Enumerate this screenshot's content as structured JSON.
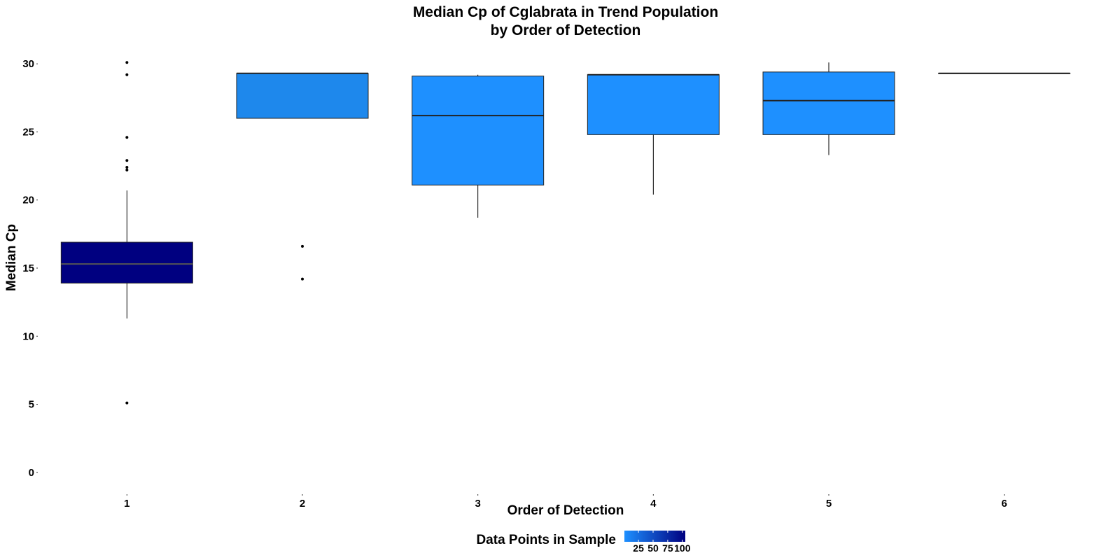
{
  "chart_data": {
    "type": "boxplot",
    "title": [
      "Median Cp of Cglabrata in Trend Population",
      "by Order of Detection"
    ],
    "xlabel": "Order of Detection",
    "ylabel": "Median Cp",
    "categories": [
      "1",
      "2",
      "3",
      "4",
      "5",
      "6"
    ],
    "y_ticks": [
      0,
      5,
      10,
      15,
      20,
      25,
      30
    ],
    "ylim": [
      -1.5,
      31.5
    ],
    "grid": false,
    "boxes": [
      {
        "x": "1",
        "whisker_low": 11.3,
        "q1": 13.9,
        "median": 15.3,
        "q3": 16.9,
        "whisker_high": 20.7,
        "outliers": [
          5.1,
          22.2,
          22.4,
          22.9,
          24.6,
          29.2,
          30.1
        ],
        "count": 105,
        "fill": "#000080"
      },
      {
        "x": "2",
        "whisker_low": 26.0,
        "q1": 26.0,
        "median": 29.3,
        "q3": 29.3,
        "whisker_high": 29.3,
        "outliers": [
          14.2,
          16.6
        ],
        "count": 7,
        "fill": "#1E88EC"
      },
      {
        "x": "3",
        "whisker_low": 18.7,
        "q1": 21.1,
        "median": 26.2,
        "q3": 29.1,
        "whisker_high": 29.2,
        "outliers": [],
        "count": 5,
        "fill": "#1E90FF"
      },
      {
        "x": "4",
        "whisker_low": 20.4,
        "q1": 24.8,
        "median": 29.2,
        "q3": 29.2,
        "whisker_high": 29.2,
        "outliers": [],
        "count": 4,
        "fill": "#1E90FF"
      },
      {
        "x": "5",
        "whisker_low": 23.3,
        "q1": 24.8,
        "median": 27.3,
        "q3": 29.4,
        "whisker_high": 30.1,
        "outliers": [],
        "count": 4,
        "fill": "#1E90FF"
      },
      {
        "x": "6",
        "whisker_low": 29.3,
        "q1": 29.3,
        "median": 29.3,
        "q3": 29.3,
        "whisker_high": 29.3,
        "outliers": [],
        "count": 1,
        "fill": "#1E90FF"
      }
    ],
    "legend": {
      "title": "Data Points in Sample",
      "position": "bottom",
      "type": "colorbar",
      "ticks": [
        25,
        50,
        75,
        100
      ],
      "range": [
        1,
        105
      ],
      "color_low": "#1E90FF",
      "color_high": "#000080"
    }
  }
}
